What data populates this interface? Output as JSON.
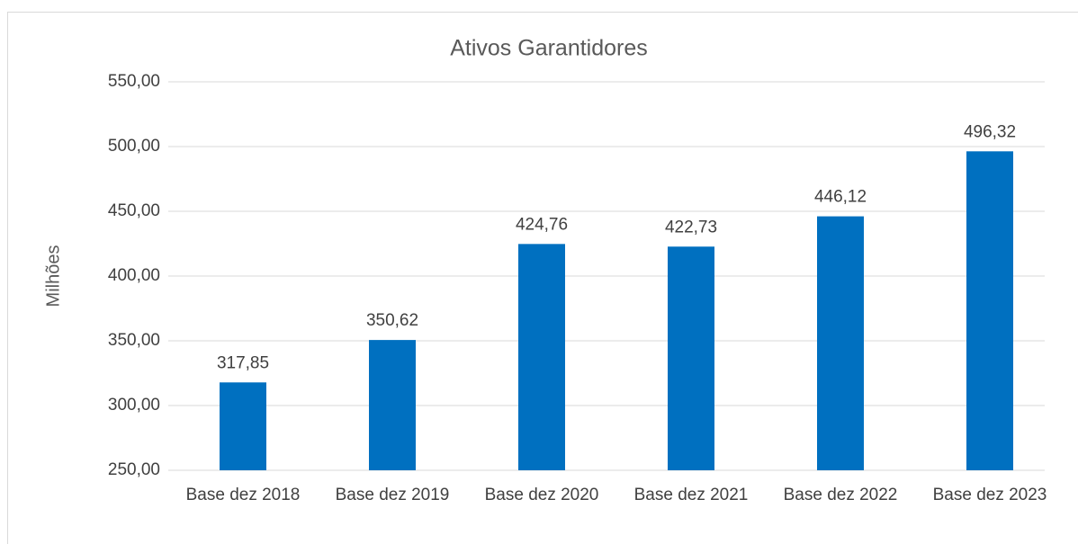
{
  "chart_data": {
    "type": "bar",
    "title": "Ativos Garantidores",
    "y_label": "Milhões",
    "categories": [
      "Base dez 2018",
      "Base dez 2019",
      "Base dez 2020",
      "Base dez 2021",
      "Base dez 2022",
      "Base dez 2023"
    ],
    "values": [
      317.85,
      350.62,
      424.76,
      422.73,
      446.12,
      496.32
    ],
    "value_labels": [
      "317,85",
      "350,62",
      "424,76",
      "422,73",
      "446,12",
      "496,32"
    ],
    "color": "#0070c0",
    "ylim": [
      250,
      550
    ],
    "yticks": [
      {
        "value": 250,
        "label": "250,00"
      },
      {
        "value": 300,
        "label": "300,00"
      },
      {
        "value": 350,
        "label": "350,00"
      },
      {
        "value": 400,
        "label": "400,00"
      },
      {
        "value": 450,
        "label": "450,00"
      },
      {
        "value": 500,
        "label": "500,00"
      },
      {
        "value": 550,
        "label": "550,00"
      }
    ],
    "grid": true
  }
}
